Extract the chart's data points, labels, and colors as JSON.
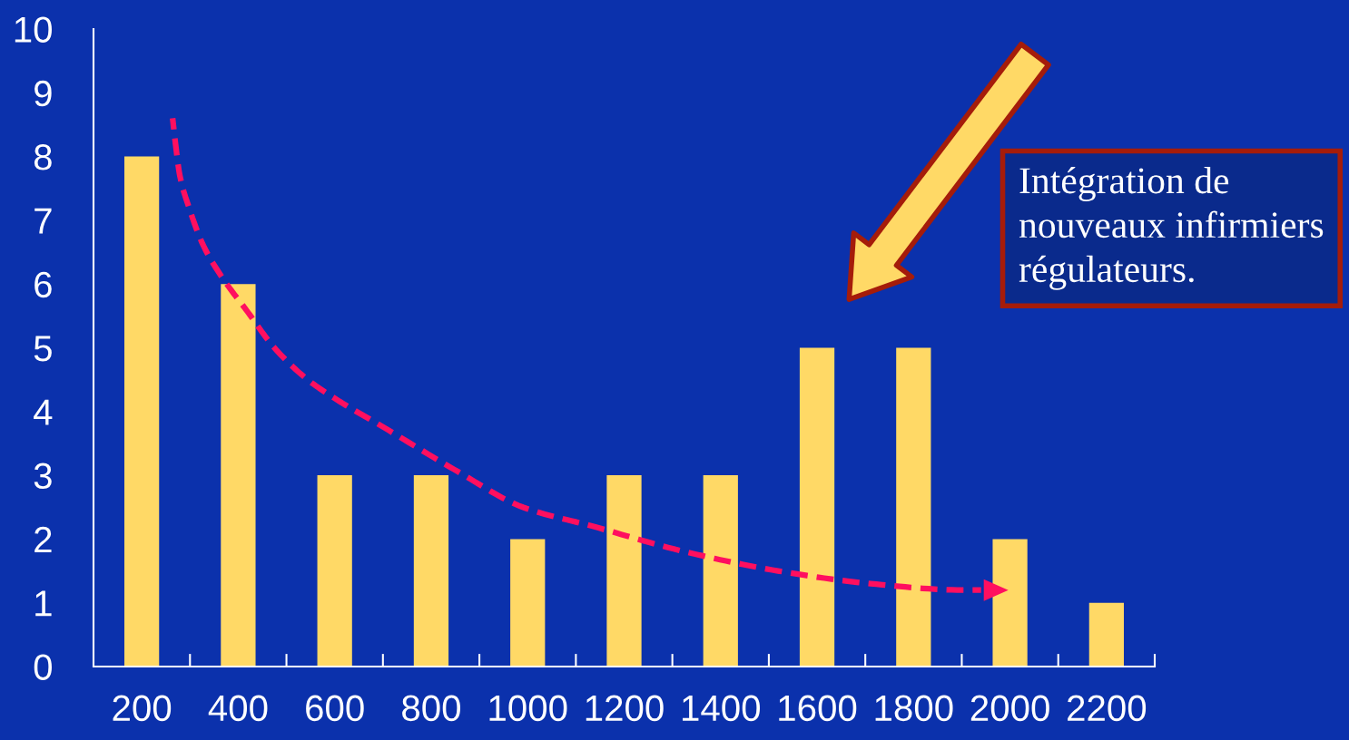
{
  "chart_data": {
    "type": "bar",
    "x": [
      200,
      400,
      600,
      800,
      1000,
      1200,
      1400,
      1600,
      1800,
      2000,
      2200
    ],
    "series": [
      {
        "color": "#ffd966",
        "values": [
          8,
          6,
          3,
          3,
          2,
          3,
          3,
          5,
          5,
          2,
          1
        ]
      },
      {
        "type": "line",
        "color": "#ff0f5f",
        "line_style": "dashed",
        "marker": "none",
        "x": [
          264,
          270,
          279,
          298,
          328,
          367,
          416,
          475,
          544,
          612,
          691,
          857,
          990,
          1135,
          1327,
          1519,
          1711,
          1903,
          1940
        ],
        "values": [
          8.6,
          8.2,
          7.7,
          7.2,
          6.6,
          6.1,
          5.6,
          5.0,
          4.5,
          4.15,
          3.8,
          3.05,
          2.5,
          2.2,
          1.8,
          1.5,
          1.3,
          1.2,
          1.2
        ]
      }
    ],
    "xlim": [
      100,
      2300
    ],
    "xticks": [
      200,
      {
        "value": 300,
        "label": null
      },
      400,
      {
        "value": 500,
        "label": null
      },
      600,
      {
        "value": 700,
        "label": null
      },
      800,
      {
        "value": 900,
        "label": null
      },
      1000,
      {
        "value": 1100,
        "label": null
      },
      1200,
      {
        "value": 1300,
        "label": null
      },
      1400,
      {
        "value": 1500,
        "label": null
      },
      1600,
      {
        "value": 1700,
        "label": null
      },
      1800,
      {
        "value": 1900,
        "label": null
      },
      2000,
      {
        "value": 2100,
        "label": null
      },
      2200,
      {
        "value": 2300,
        "label": null
      }
    ],
    "ylim": [
      0,
      10
    ],
    "yticks": [
      0,
      1,
      2,
      3,
      4,
      5,
      6,
      7,
      8,
      9,
      10
    ],
    "annotations": [
      "Intégration de nouveaux infirmiers régulateurs."
    ]
  }
}
